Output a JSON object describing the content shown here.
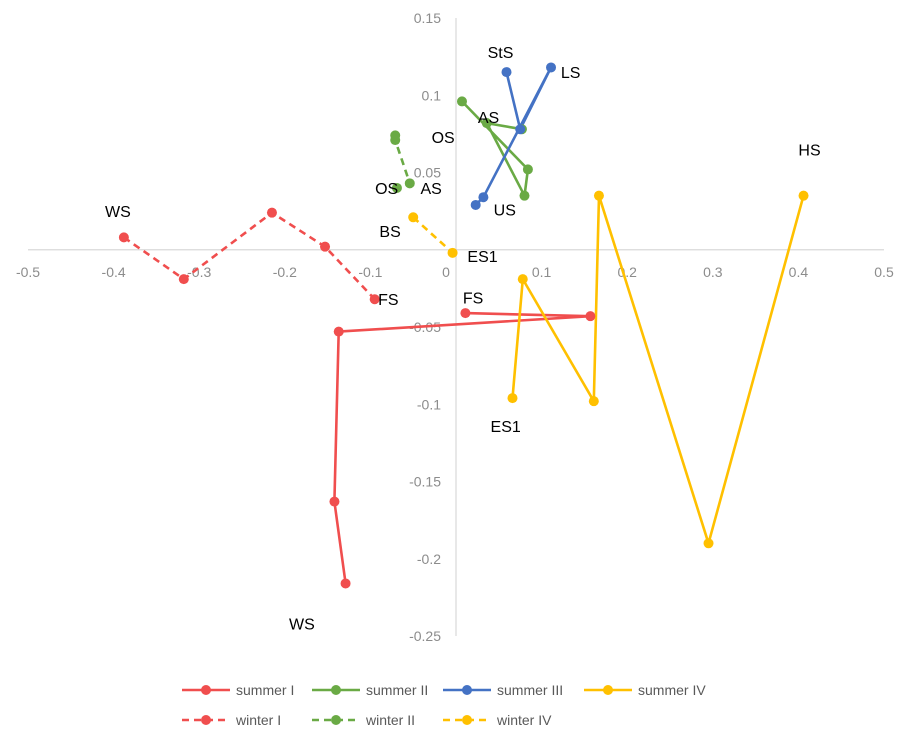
{
  "chart_data": {
    "type": "scatter",
    "xlim": [
      -0.5,
      0.5
    ],
    "ylim": [
      -0.25,
      0.15
    ],
    "x_ticks": [
      "-0.5",
      "-0.4",
      "-0.3",
      "-0.2",
      "-0.1",
      "0",
      "0.1",
      "0.2",
      "0.3",
      "0.4",
      "0.5"
    ],
    "y_ticks": [
      "0.15",
      "0.1",
      "0.05",
      "0",
      "-0.05",
      "-0.1",
      "-0.15",
      "-0.2",
      "-0.25"
    ],
    "grid": false,
    "legend_position": "bottom",
    "series": [
      {
        "name": "summer I",
        "color": "#f04e4e",
        "dash": false,
        "points": [
          [
            -0.129,
            -0.216
          ],
          [
            -0.142,
            -0.163
          ],
          [
            -0.137,
            -0.053
          ],
          [
            0.157,
            -0.043
          ],
          [
            0.011,
            -0.041
          ]
        ]
      },
      {
        "name": "summer II",
        "color": "#6aaa45",
        "dash": false,
        "points": [
          [
            0.007,
            0.096
          ],
          [
            0.084,
            0.052
          ],
          [
            0.08,
            0.035
          ],
          [
            0.036,
            0.082
          ],
          [
            0.077,
            0.078
          ]
        ]
      },
      {
        "name": "summer III",
        "color": "#4472c4",
        "dash": false,
        "points": [
          [
            0.059,
            0.115
          ],
          [
            0.075,
            0.078
          ],
          [
            0.111,
            0.118
          ],
          [
            0.032,
            0.034
          ],
          [
            0.023,
            0.029
          ]
        ]
      },
      {
        "name": "summer IV",
        "color": "#ffc000",
        "dash": false,
        "points": [
          [
            0.406,
            0.035
          ],
          [
            0.295,
            -0.19
          ],
          [
            0.167,
            0.035
          ],
          [
            0.161,
            -0.098
          ],
          [
            0.078,
            -0.019
          ],
          [
            0.066,
            -0.096
          ]
        ]
      },
      {
        "name": "winter I",
        "color": "#f04e4e",
        "dash": true,
        "points": [
          [
            -0.388,
            0.008
          ],
          [
            -0.318,
            -0.019
          ],
          [
            -0.215,
            0.024
          ],
          [
            -0.153,
            0.002
          ],
          [
            -0.095,
            -0.032
          ]
        ]
      },
      {
        "name": "winter II",
        "color": "#6aaa45",
        "dash": true,
        "points": [
          [
            -0.071,
            0.074
          ],
          [
            -0.071,
            0.071
          ],
          [
            -0.054,
            0.043
          ],
          [
            -0.069,
            0.04
          ]
        ]
      },
      {
        "name": "winter IV",
        "color": "#ffc000",
        "dash": true,
        "points": [
          [
            -0.05,
            0.021
          ],
          [
            -0.004,
            -0.002
          ]
        ]
      }
    ],
    "annotations": [
      {
        "text": "WS",
        "x": -0.395,
        "y": 0.025
      },
      {
        "text": "FS",
        "x": -0.079,
        "y": -0.032
      },
      {
        "text": "OS",
        "x": -0.081,
        "y": 0.04
      },
      {
        "text": "AS",
        "x": -0.029,
        "y": 0.04
      },
      {
        "text": "BS",
        "x": -0.077,
        "y": 0.012
      },
      {
        "text": "ES1",
        "x": 0.031,
        "y": -0.004
      },
      {
        "text": "FS",
        "x": 0.02,
        "y": -0.031
      },
      {
        "text": "OS",
        "x": -0.015,
        "y": 0.073
      },
      {
        "text": "AS",
        "x": 0.038,
        "y": 0.086
      },
      {
        "text": "StS",
        "x": 0.052,
        "y": 0.128
      },
      {
        "text": "LS",
        "x": 0.134,
        "y": 0.115
      },
      {
        "text": "US",
        "x": 0.057,
        "y": 0.026
      },
      {
        "text": "HS",
        "x": 0.413,
        "y": 0.065
      },
      {
        "text": "ES1",
        "x": 0.058,
        "y": -0.114
      },
      {
        "text": "WS",
        "x": -0.18,
        "y": -0.242
      }
    ]
  }
}
